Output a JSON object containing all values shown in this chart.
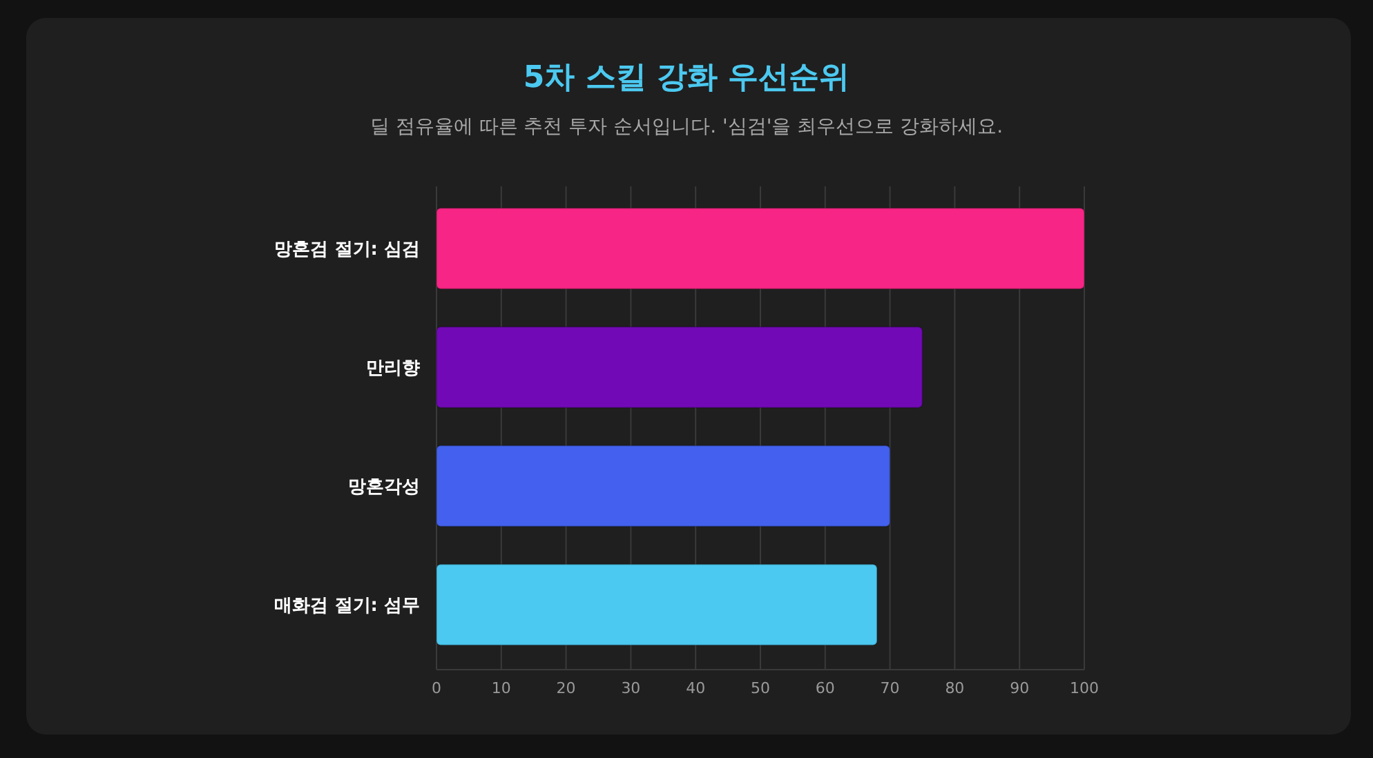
{
  "chart_data": {
    "type": "bar",
    "orientation": "horizontal",
    "title": "5차 스킬 강화 우선순위",
    "subtitle": "딜 점유율에 따른 추천 투자 순서입니다. '심검'을 최우선으로 강화하세요.",
    "categories": [
      "망혼검 절기: 심검",
      "만리향",
      "망혼각성",
      "매화검 절기: 섬무"
    ],
    "values": [
      100,
      75,
      70,
      68
    ],
    "colors": [
      "#f72585",
      "#7209b7",
      "#4361ee",
      "#4cc9f0"
    ],
    "xlim": [
      0,
      100
    ],
    "xticks": [
      0,
      10,
      20,
      30,
      40,
      50,
      60,
      70,
      80,
      90,
      100
    ],
    "grid": "x"
  }
}
